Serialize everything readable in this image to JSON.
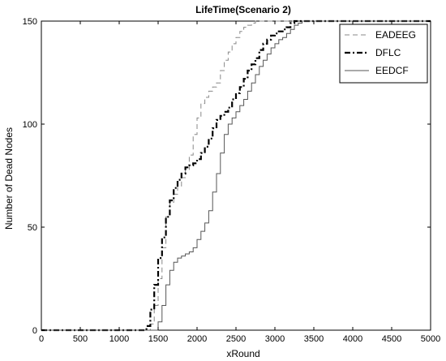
{
  "chart_data": {
    "type": "line",
    "title": "LifeTime(Scenario 2)",
    "xlabel": "xRound",
    "ylabel": "Number of Dead Nodes",
    "xlim": [
      0,
      5000
    ],
    "ylim": [
      0,
      150
    ],
    "x_ticks": [
      0,
      500,
      1000,
      1500,
      2000,
      2500,
      3000,
      3500,
      4000,
      4500,
      5000
    ],
    "y_ticks": [
      0,
      50,
      100,
      150
    ],
    "grid": false,
    "legend_position": "top-right",
    "series": [
      {
        "name": "EADEEG",
        "style": "dashed",
        "color": "#888888",
        "points": [
          [
            0,
            0
          ],
          [
            1350,
            0
          ],
          [
            1400,
            3
          ],
          [
            1450,
            12
          ],
          [
            1500,
            25
          ],
          [
            1550,
            40
          ],
          [
            1600,
            55
          ],
          [
            1650,
            62
          ],
          [
            1700,
            66
          ],
          [
            1750,
            70
          ],
          [
            1800,
            74
          ],
          [
            1850,
            78
          ],
          [
            1900,
            85
          ],
          [
            1950,
            95
          ],
          [
            2000,
            103
          ],
          [
            2050,
            110
          ],
          [
            2100,
            113
          ],
          [
            2150,
            116
          ],
          [
            2200,
            118
          ],
          [
            2250,
            120
          ],
          [
            2300,
            126
          ],
          [
            2350,
            131
          ],
          [
            2400,
            135
          ],
          [
            2450,
            139
          ],
          [
            2500,
            142
          ],
          [
            2550,
            145
          ],
          [
            2600,
            147
          ],
          [
            2650,
            148
          ],
          [
            2700,
            149
          ],
          [
            2750,
            150
          ],
          [
            5000,
            150
          ]
        ]
      },
      {
        "name": "DFLC",
        "style": "dashdot",
        "color": "#000000",
        "points": [
          [
            0,
            0
          ],
          [
            1300,
            0
          ],
          [
            1350,
            2
          ],
          [
            1400,
            10
          ],
          [
            1450,
            22
          ],
          [
            1500,
            35
          ],
          [
            1550,
            45
          ],
          [
            1600,
            55
          ],
          [
            1650,
            63
          ],
          [
            1700,
            69
          ],
          [
            1750,
            73
          ],
          [
            1800,
            76
          ],
          [
            1850,
            79
          ],
          [
            1900,
            80
          ],
          [
            1950,
            81
          ],
          [
            2000,
            83
          ],
          [
            2050,
            86
          ],
          [
            2100,
            89
          ],
          [
            2150,
            93
          ],
          [
            2200,
            98
          ],
          [
            2250,
            102
          ],
          [
            2300,
            104
          ],
          [
            2350,
            106
          ],
          [
            2400,
            108
          ],
          [
            2450,
            112
          ],
          [
            2500,
            115
          ],
          [
            2550,
            118
          ],
          [
            2600,
            122
          ],
          [
            2650,
            126
          ],
          [
            2700,
            129
          ],
          [
            2750,
            132
          ],
          [
            2800,
            136
          ],
          [
            2850,
            139
          ],
          [
            2900,
            141
          ],
          [
            2950,
            143
          ],
          [
            3000,
            144
          ],
          [
            3050,
            145
          ],
          [
            3100,
            146
          ],
          [
            3150,
            147
          ],
          [
            3200,
            149
          ],
          [
            3250,
            150
          ],
          [
            5000,
            150
          ]
        ]
      },
      {
        "name": "EEDCF",
        "style": "solid",
        "color": "#555555",
        "points": [
          [
            0,
            0
          ],
          [
            1450,
            0
          ],
          [
            1500,
            4
          ],
          [
            1550,
            12
          ],
          [
            1600,
            22
          ],
          [
            1650,
            29
          ],
          [
            1700,
            33
          ],
          [
            1750,
            35
          ],
          [
            1800,
            36
          ],
          [
            1850,
            37
          ],
          [
            1900,
            38
          ],
          [
            1950,
            40
          ],
          [
            2000,
            44
          ],
          [
            2050,
            48
          ],
          [
            2100,
            52
          ],
          [
            2150,
            58
          ],
          [
            2200,
            67
          ],
          [
            2250,
            76
          ],
          [
            2300,
            86
          ],
          [
            2350,
            95
          ],
          [
            2400,
            100
          ],
          [
            2450,
            103
          ],
          [
            2500,
            106
          ],
          [
            2550,
            109
          ],
          [
            2600,
            112
          ],
          [
            2650,
            116
          ],
          [
            2700,
            120
          ],
          [
            2750,
            124
          ],
          [
            2800,
            128
          ],
          [
            2850,
            131
          ],
          [
            2900,
            134
          ],
          [
            2950,
            137
          ],
          [
            3000,
            139
          ],
          [
            3050,
            141
          ],
          [
            3100,
            142
          ],
          [
            3150,
            144
          ],
          [
            3200,
            146
          ],
          [
            3250,
            148
          ],
          [
            3300,
            149
          ],
          [
            3350,
            150
          ],
          [
            5000,
            150
          ]
        ]
      }
    ]
  }
}
